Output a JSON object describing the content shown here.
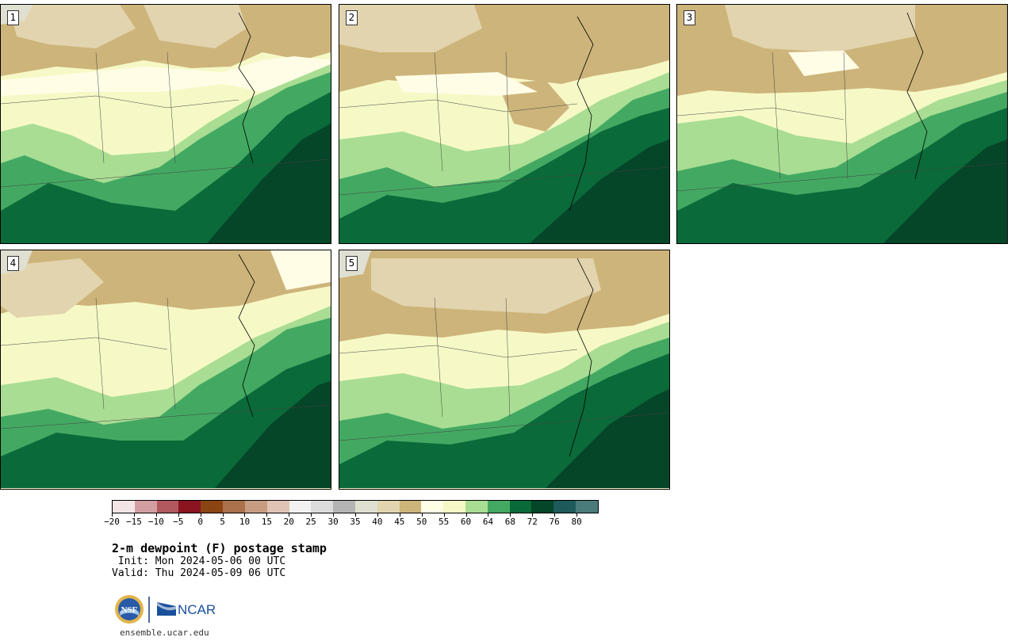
{
  "panels": [
    {
      "number": "1"
    },
    {
      "number": "2"
    },
    {
      "number": "3"
    },
    {
      "number": "4"
    },
    {
      "number": "5"
    }
  ],
  "colorbar": {
    "colors": [
      "#f3e5e5",
      "#d29ea2",
      "#b0585e",
      "#8a1420",
      "#8b4513",
      "#a9714c",
      "#c79d82",
      "#e0c3b4",
      "#f2f2f2",
      "#dcdcdc",
      "#b4b4b4",
      "#dfe0d2",
      "#e2d4ae",
      "#cdb47a",
      "#fffde6",
      "#f6f9c6",
      "#a9dd93",
      "#43a962",
      "#0a6a3a",
      "#054528",
      "#1e5a5a",
      "#4a7a7a"
    ],
    "tick_labels": [
      "−20",
      "−15",
      "−10",
      "−5",
      "0",
      "5",
      "10",
      "15",
      "20",
      "25",
      "30",
      "35",
      "40",
      "45",
      "50",
      "55",
      "60",
      "64",
      "68",
      "72",
      "76",
      "80"
    ]
  },
  "title": {
    "main": "2-m dewpoint (F) postage stamp",
    "init": " Init: Mon 2024-05-06 00 UTC",
    "valid": "Valid: Thu 2024-05-09 06 UTC"
  },
  "logos": {
    "nsf_text": "NSF",
    "ncar_text": "NCAR",
    "url": "ensemble.ucar.edu"
  },
  "colors": {
    "tan_dark": "#cdb47a",
    "tan_light": "#e2d4ae",
    "gray": "#dfe0d2",
    "cream": "#fffde6",
    "yellow": "#f6f9c6",
    "green_light": "#a9dd93",
    "green_mid": "#43a962",
    "green_dark": "#0a6a3a",
    "green_darkest": "#054528"
  }
}
